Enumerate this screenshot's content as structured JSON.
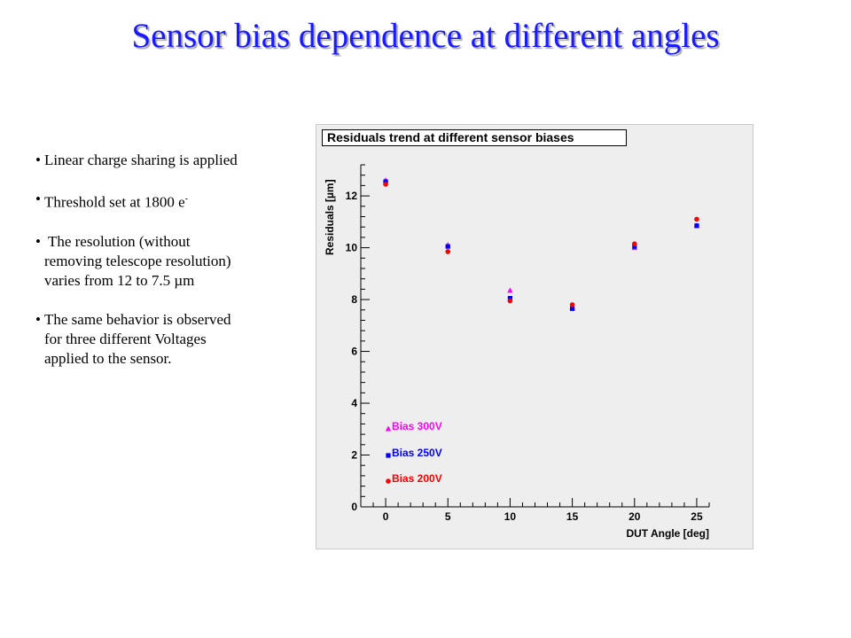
{
  "slide": {
    "title": "Sensor bias dependence at different angles",
    "bullets": {
      "b1": "Linear charge sharing is applied",
      "b2_text": "Threshold set at 1800 e",
      "b2_sup": "-",
      "b3_line1": " The resolution (without",
      "b3_line2": "removing telescope resolution)",
      "b3_line3": "varies from 12 to 7.5 µm",
      "b4_line1": "The same behavior is observed",
      "b4_line2": "for three different Voltages",
      "b4_line3": "applied to the sensor."
    }
  },
  "chart_data": {
    "type": "scatter",
    "title": "Residuals trend at different sensor biases",
    "xlabel": "DUT Angle [deg]",
    "ylabel": "Residuals [µm]",
    "xlim": [
      -2,
      26
    ],
    "ylim": [
      0,
      13.2
    ],
    "xticks": [
      0,
      5,
      10,
      15,
      20,
      25
    ],
    "yticks": [
      0,
      2,
      4,
      6,
      8,
      10,
      12
    ],
    "grid": false,
    "legend_position": "bottom-left",
    "series": [
      {
        "name": "Bias 300V",
        "marker": "triangle",
        "color": "#ff00ff",
        "x": [
          0,
          5,
          10,
          15,
          20,
          25
        ],
        "y": [
          12.6,
          10.1,
          8.35,
          7.7,
          10.0,
          10.85
        ]
      },
      {
        "name": "Bias 250V",
        "marker": "square",
        "color": "#0000ff",
        "x": [
          0,
          5,
          10,
          15,
          20,
          25
        ],
        "y": [
          12.55,
          10.05,
          8.05,
          7.65,
          10.05,
          10.85
        ]
      },
      {
        "name": "Bias 200V",
        "marker": "circle",
        "color": "#ff0000",
        "x": [
          0,
          5,
          10,
          15,
          20,
          25
        ],
        "y": [
          12.45,
          9.85,
          7.95,
          7.8,
          10.15,
          11.1
        ]
      }
    ]
  }
}
